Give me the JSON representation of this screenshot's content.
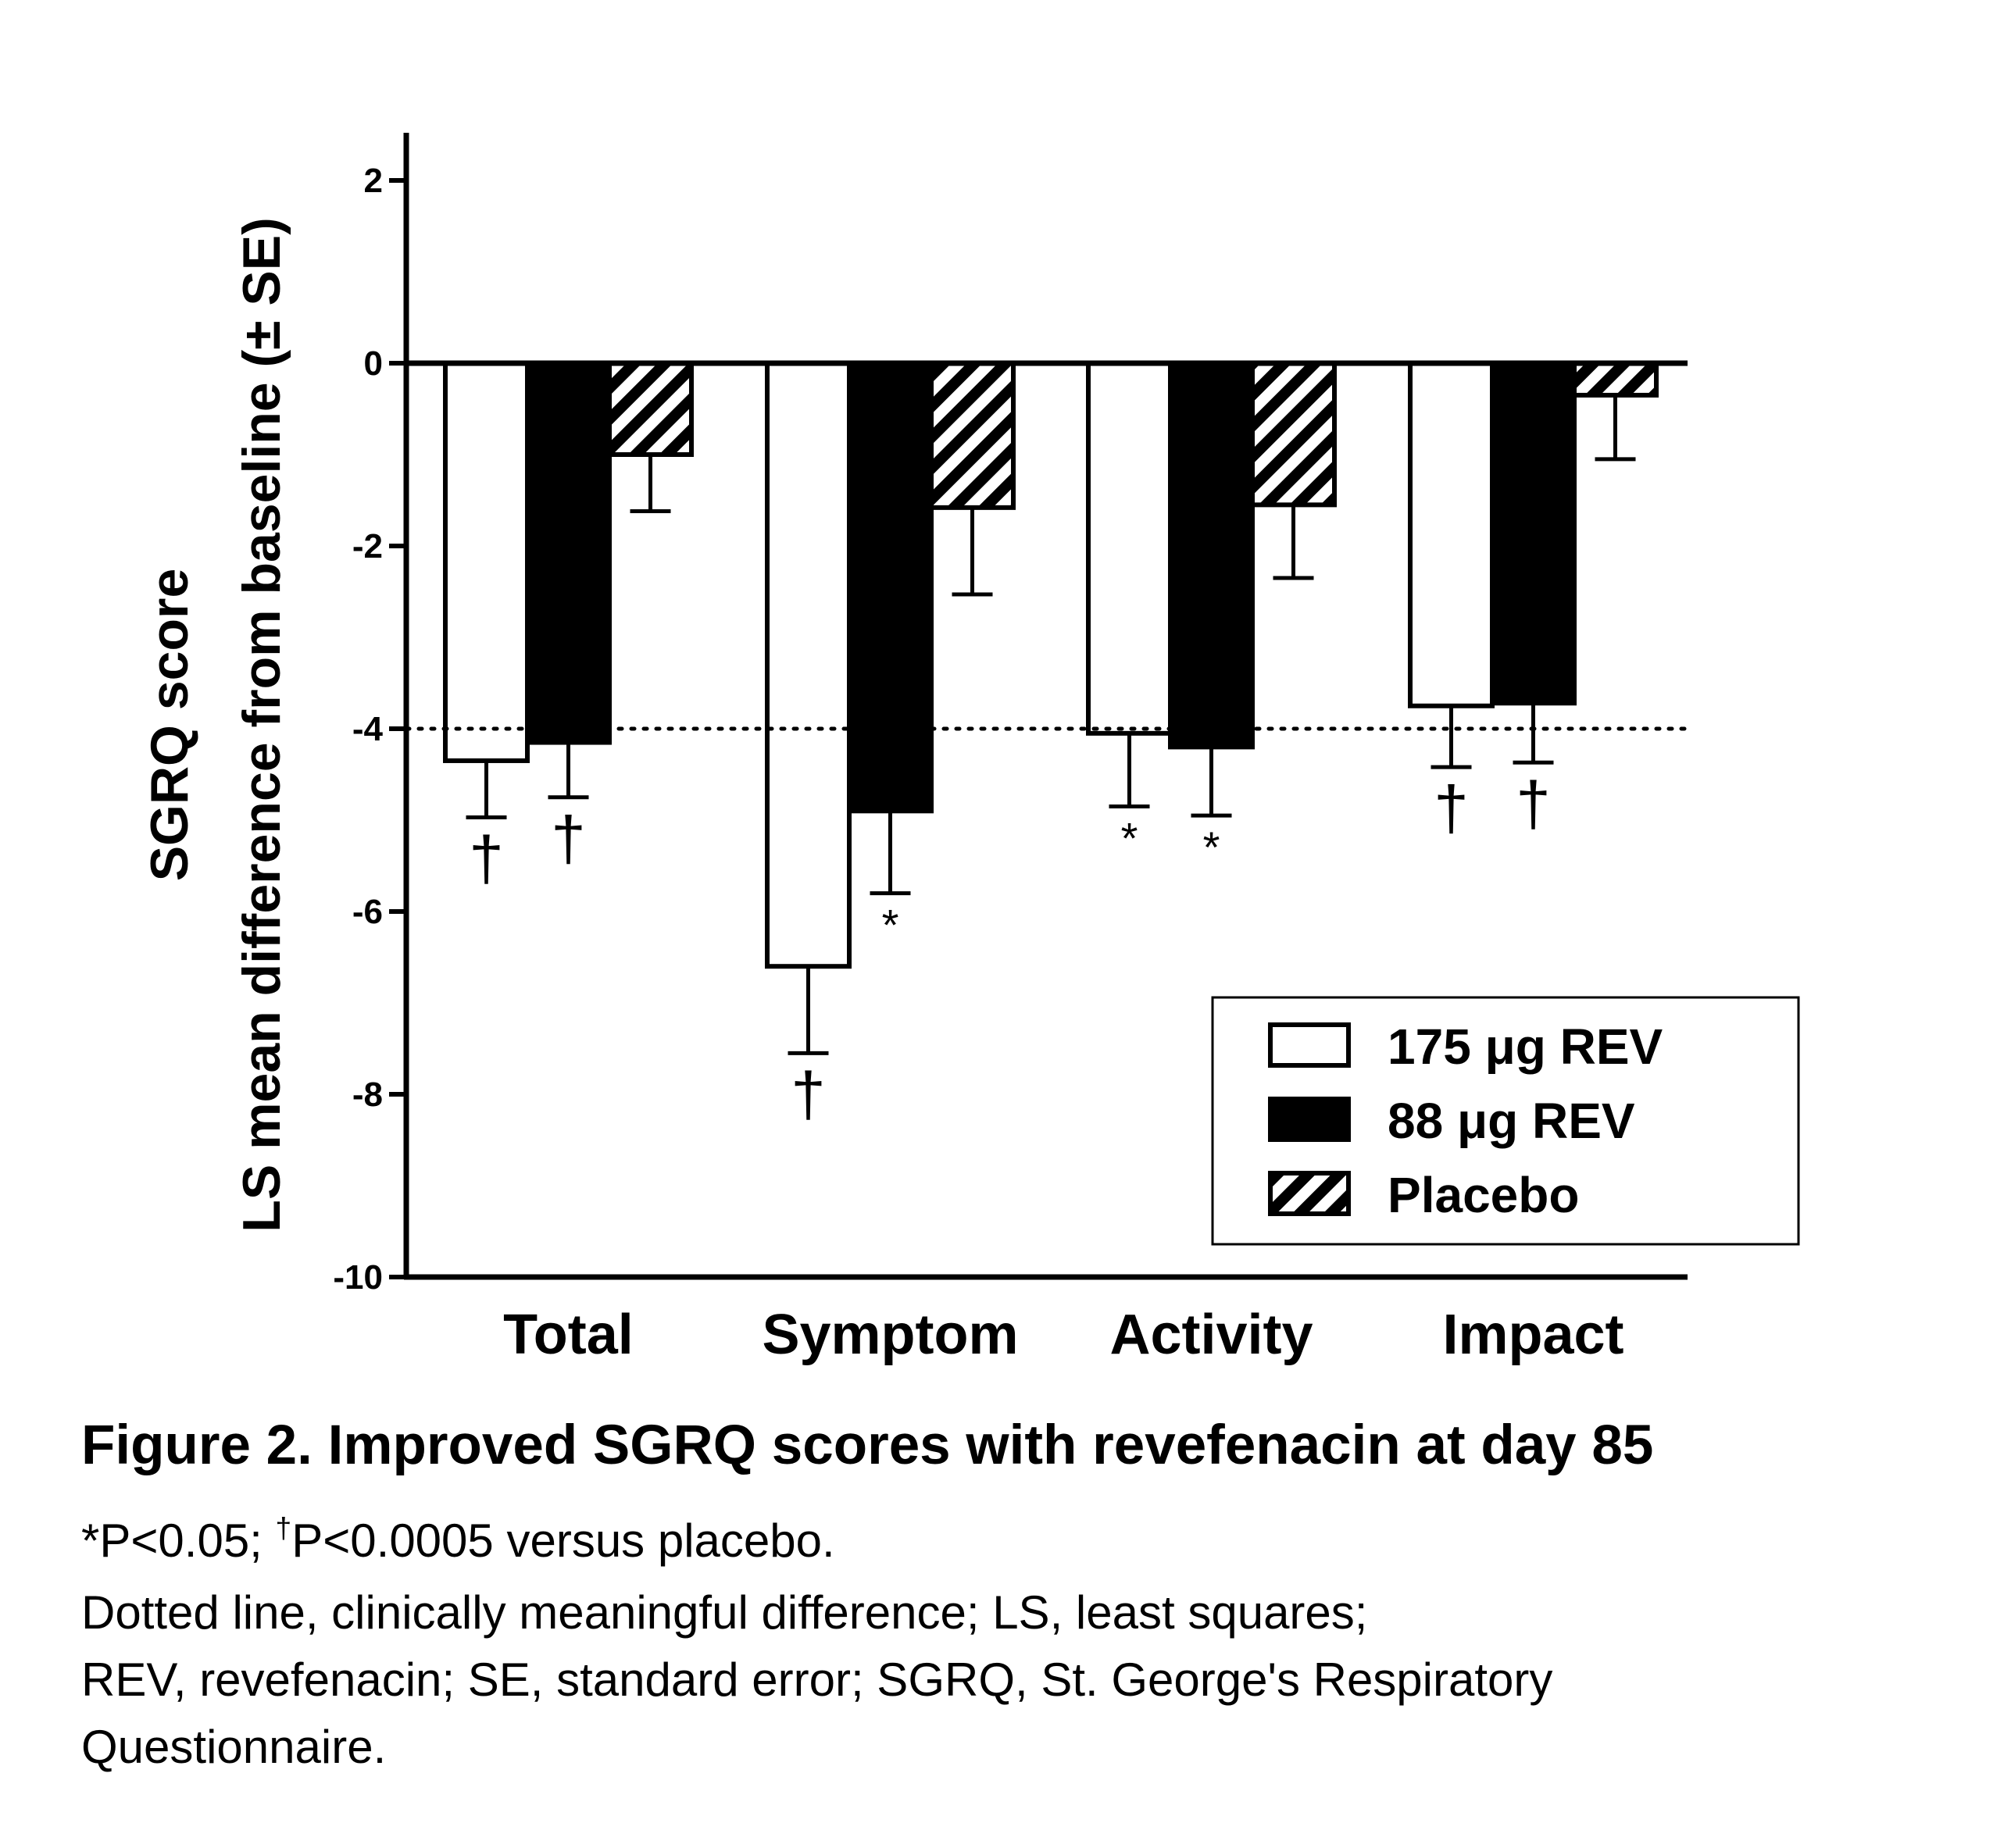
{
  "chart_data": {
    "type": "bar",
    "categories": [
      "Total",
      "Symptom",
      "Activity",
      "Impact"
    ],
    "series": [
      {
        "name": "175 μg REV",
        "values": [
          -4.35,
          -6.6,
          -4.05,
          -3.75
        ],
        "se": [
          0.62,
          0.95,
          0.8,
          0.67
        ],
        "significance": [
          "†",
          "†",
          "*",
          "†"
        ]
      },
      {
        "name": "88 μg REV",
        "values": [
          -4.15,
          -4.9,
          -4.2,
          -3.72
        ],
        "se": [
          0.6,
          0.9,
          0.75,
          0.65
        ],
        "significance": [
          "†",
          "*",
          "*",
          "†"
        ]
      },
      {
        "name": "Placebo",
        "values": [
          -1.0,
          -1.58,
          -1.55,
          -0.35
        ],
        "se": [
          0.62,
          0.95,
          0.8,
          0.7
        ],
        "significance": [
          "",
          "",
          "",
          ""
        ]
      }
    ],
    "ylabel_line1": "SGRQ score",
    "ylabel_line2": "LS mean difference from baseline (± SE)",
    "ylim": [
      -10,
      2.5
    ],
    "yticks": [
      2,
      0,
      -2,
      -4,
      -6,
      -8,
      -10
    ],
    "reference_line": -4,
    "legend_position": "bottom-right",
    "colors": {
      "175 μg REV": "#ffffff",
      "88 μg REV": "#000000",
      "Placebo": "hatched"
    }
  },
  "caption": {
    "title": "Figure 2. Improved SGRQ scores with revefenacin at day 85",
    "line1_a": "*P<0.05; ",
    "line1_dagger": "†",
    "line1_b": "P<0.0005 versus placebo.",
    "line2": "Dotted line, clinically meaningful difference; LS, least squares;",
    "line3": "REV, revefenacin; SE, standard error; SGRQ, St. George's Respiratory",
    "line4": "Questionnaire."
  }
}
